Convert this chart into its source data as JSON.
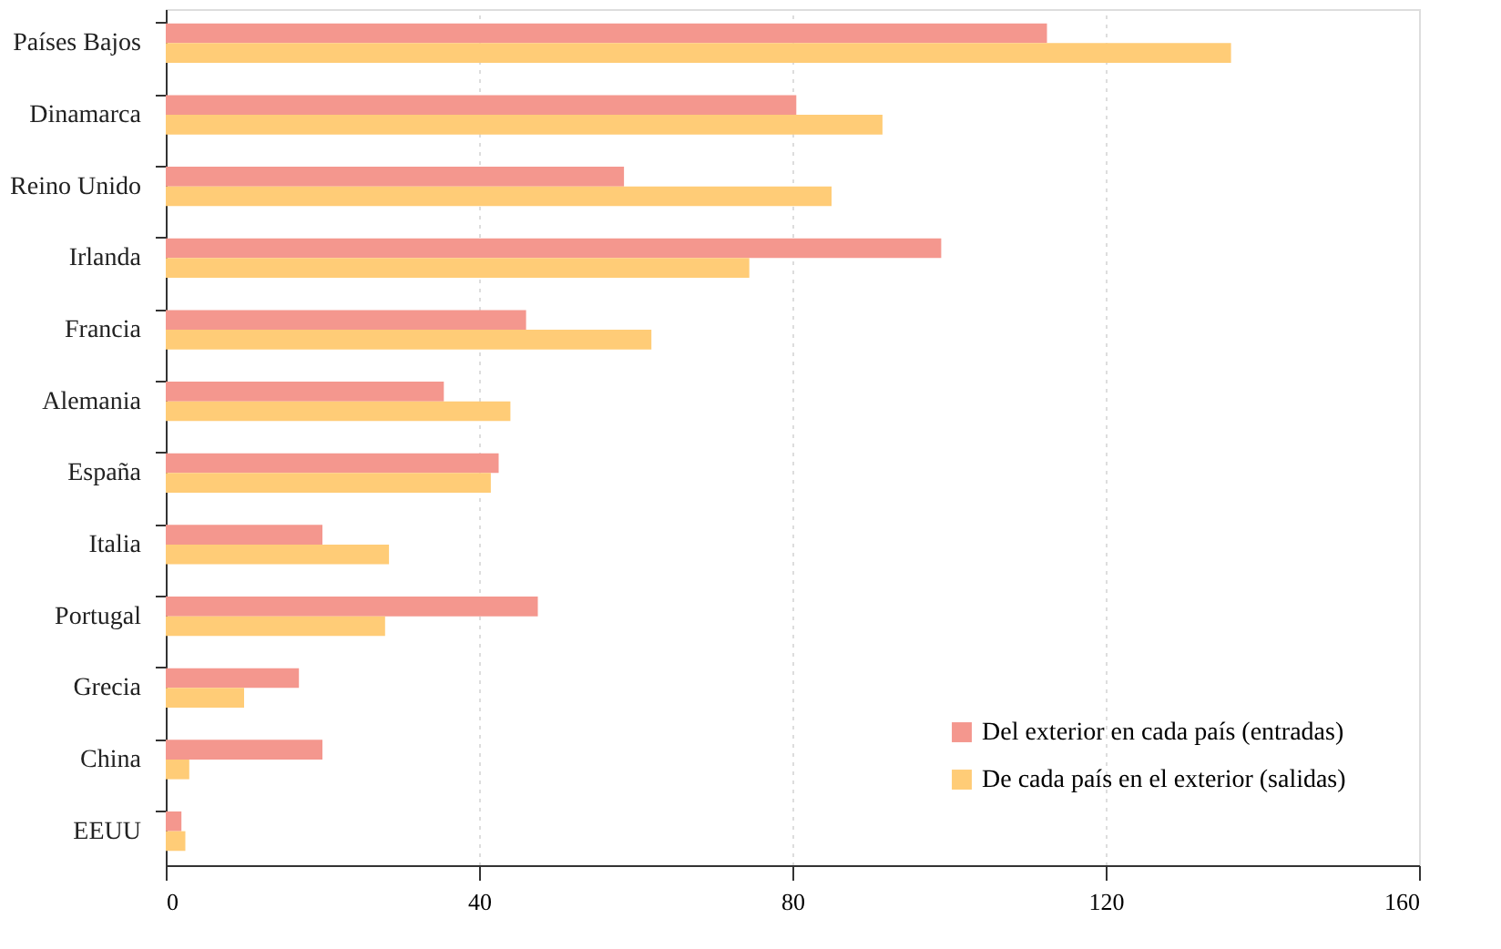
{
  "chart_data": {
    "type": "bar",
    "orientation": "horizontal",
    "categories": [
      "Países Bajos",
      "Dinamarca",
      "Reino Unido",
      "Irlanda",
      "Francia",
      "Alemania",
      "España",
      "Italia",
      "Portugal",
      "Grecia",
      "China",
      "EEUU"
    ],
    "series": [
      {
        "name": "Del exterior en cada país (entradas)",
        "color": "#f4978e",
        "values": [
          112.5,
          80.5,
          58.5,
          99,
          46,
          35.5,
          42.5,
          20,
          47.5,
          17,
          20,
          2
        ]
      },
      {
        "name": "De cada país en el exterior (salidas)",
        "color": "#ffcc77",
        "values": [
          136,
          91.5,
          85,
          74.5,
          62,
          44,
          41.5,
          28.5,
          28,
          10,
          3,
          2.5
        ]
      }
    ],
    "xlim": [
      0,
      160
    ],
    "xticks": [
      0,
      40,
      80,
      120,
      160
    ],
    "grid": "x",
    "legend": "bottom right"
  }
}
